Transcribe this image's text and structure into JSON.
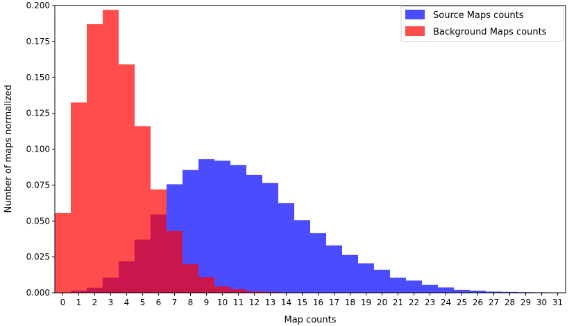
{
  "chart_data": {
    "type": "bar",
    "title": "",
    "xlabel": "Map counts",
    "ylabel": "Number of maps normalized",
    "xlim": [
      -0.5,
      31.5
    ],
    "ylim": [
      0,
      0.2
    ],
    "x_ticks": [
      0,
      1,
      2,
      3,
      4,
      5,
      6,
      7,
      8,
      9,
      10,
      11,
      12,
      13,
      14,
      15,
      16,
      17,
      18,
      19,
      20,
      21,
      22,
      23,
      24,
      25,
      26,
      27,
      28,
      29,
      30,
      31
    ],
    "y_ticks": [
      0.0,
      0.025,
      0.05,
      0.075,
      0.1,
      0.125,
      0.15,
      0.175,
      0.2
    ],
    "y_tick_labels": [
      "0.000",
      "0.025",
      "0.050",
      "0.075",
      "0.100",
      "0.125",
      "0.150",
      "0.175",
      "0.200"
    ],
    "legend_position": "top-right",
    "grid": false,
    "series": [
      {
        "name": "Source Maps counts",
        "color": "#0000ff",
        "alpha": 0.7,
        "bins": [
          0,
          1,
          2,
          3,
          4,
          5,
          6,
          7,
          8,
          9,
          10,
          11,
          12,
          13,
          14,
          15,
          16,
          17,
          18,
          19,
          20,
          21,
          22,
          23,
          24,
          25,
          26,
          27,
          28,
          29,
          30,
          31
        ],
        "values": [
          0.0,
          0.0015,
          0.0035,
          0.0105,
          0.022,
          0.037,
          0.0545,
          0.0755,
          0.0855,
          0.093,
          0.092,
          0.089,
          0.082,
          0.0765,
          0.0625,
          0.0505,
          0.0415,
          0.033,
          0.0265,
          0.0205,
          0.016,
          0.0105,
          0.0085,
          0.0055,
          0.0037,
          0.002,
          0.0015,
          0.0008,
          0.0006,
          0.0004,
          0.0003,
          0.0002
        ]
      },
      {
        "name": "Background Maps counts",
        "color": "#ff0000",
        "alpha": 0.7,
        "bins": [
          0,
          1,
          2,
          3,
          4,
          5,
          6,
          7,
          8,
          9,
          10,
          11,
          12,
          13,
          14,
          15,
          16,
          17,
          18,
          19,
          20,
          21,
          22,
          23,
          24,
          25,
          26,
          27,
          28,
          29,
          30,
          31
        ],
        "values": [
          0.0555,
          0.1325,
          0.187,
          0.197,
          0.159,
          0.116,
          0.072,
          0.043,
          0.02,
          0.011,
          0.0045,
          0.0025,
          0.001,
          0.0006,
          0.0003,
          0.0001,
          0,
          0,
          0,
          0,
          0,
          0,
          0,
          0,
          0,
          0,
          0,
          0,
          0,
          0,
          0,
          0
        ]
      }
    ]
  }
}
